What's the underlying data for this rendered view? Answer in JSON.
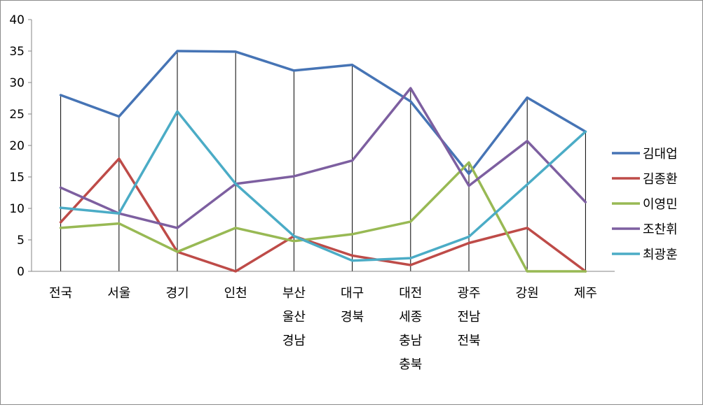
{
  "chart_data": {
    "type": "line",
    "title": "",
    "xlabel": "",
    "ylabel": "",
    "ylim": [
      0,
      40
    ],
    "yticks": [
      "0",
      "5",
      "10",
      "15",
      "20",
      "25",
      "30",
      "35",
      "40"
    ],
    "grid": "vertical drop lines at each category",
    "legend": "right",
    "categories": [
      [
        "전국"
      ],
      [
        "서울"
      ],
      [
        "경기"
      ],
      [
        "인천"
      ],
      [
        "부산",
        "울산",
        "경남"
      ],
      [
        "대구",
        "경북"
      ],
      [
        "대전",
        "세종",
        "충남",
        "충북"
      ],
      [
        "광주",
        "전남",
        "전북"
      ],
      [
        "강원"
      ],
      [
        "제주"
      ]
    ],
    "series": [
      {
        "name": "김대업",
        "color": "#4674B5",
        "values": [
          28.0,
          24.6,
          35.0,
          34.9,
          31.9,
          32.8,
          27.0,
          15.5,
          27.6,
          22.2
        ]
      },
      {
        "name": "김종환",
        "color": "#BE4B48",
        "values": [
          7.8,
          17.9,
          3.1,
          0.0,
          5.6,
          2.5,
          1.0,
          4.5,
          6.9,
          0.0
        ]
      },
      {
        "name": "이영민",
        "color": "#98B954",
        "values": [
          6.9,
          7.6,
          3.1,
          6.9,
          4.8,
          5.9,
          7.9,
          17.3,
          0.0,
          0.0
        ]
      },
      {
        "name": "조찬휘",
        "color": "#7D5FA0",
        "values": [
          13.3,
          9.2,
          6.9,
          13.9,
          15.1,
          17.6,
          29.1,
          13.6,
          20.7,
          11.0
        ]
      },
      {
        "name": "최광훈",
        "color": "#4BACC6",
        "values": [
          10.1,
          9.2,
          25.4,
          13.9,
          5.6,
          1.7,
          2.1,
          5.5,
          13.8,
          22.2
        ]
      }
    ]
  }
}
